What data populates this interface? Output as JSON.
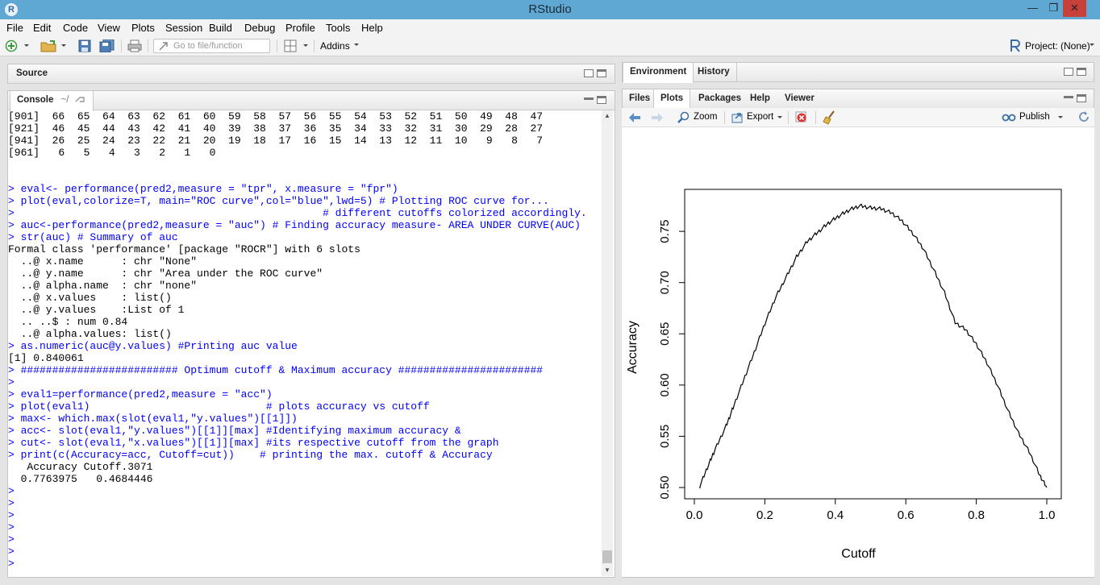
{
  "window": {
    "title": "RStudio",
    "icon": "R"
  },
  "menu": [
    "File",
    "Edit",
    "Code",
    "View",
    "Plots",
    "Session",
    "Build",
    "Debug",
    "Profile",
    "Tools",
    "Help"
  ],
  "toolbar": {
    "goto_placeholder": "Go to file/function",
    "addins": "Addins",
    "project": "Project: (None)"
  },
  "source_pane": {
    "title": "Source"
  },
  "console_pane": {
    "title": "Console",
    "path": "~/"
  },
  "console_lines": [
    {
      "t": "out",
      "s": "[901]  66  65  64  63  62  61  60  59  58  57  56  55  54  53  52  51  50  49  48  47"
    },
    {
      "t": "out",
      "s": "[921]  46  45  44  43  42  41  40  39  38  37  36  35  34  33  32  31  30  29  28  27"
    },
    {
      "t": "out",
      "s": "[941]  26  25  24  23  22  21  20  19  18  17  16  15  14  13  12  11  10   9   8   7"
    },
    {
      "t": "out",
      "s": "[961]   6   5   4   3   2   1   0"
    },
    {
      "t": "out",
      "s": ""
    },
    {
      "t": "out",
      "s": ""
    },
    {
      "t": "in",
      "s": "> eval<- performance(pred2,measure = \"tpr\", x.measure = \"fpr\")"
    },
    {
      "t": "in",
      "s": "> plot(eval,colorize=T, main=\"ROC curve\",col=\"blue\",lwd=5) # Plotting ROC curve for..."
    },
    {
      "t": "in",
      "s": ">                                                 # different cutoffs colorized accordingly."
    },
    {
      "t": "in",
      "s": "> auc<-performance(pred2,measure = \"auc\") # Finding accuracy measure- AREA UNDER CURVE(AUC)"
    },
    {
      "t": "in",
      "s": "> str(auc) # Summary of auc"
    },
    {
      "t": "out",
      "s": "Formal class 'performance' [package \"ROCR\"] with 6 slots"
    },
    {
      "t": "out",
      "s": "  ..@ x.name      : chr \"None\""
    },
    {
      "t": "out",
      "s": "  ..@ y.name      : chr \"Area under the ROC curve\""
    },
    {
      "t": "out",
      "s": "  ..@ alpha.name  : chr \"none\""
    },
    {
      "t": "out",
      "s": "  ..@ x.values    : list()"
    },
    {
      "t": "out",
      "s": "  ..@ y.values    :List of 1"
    },
    {
      "t": "out",
      "s": "  .. ..$ : num 0.84"
    },
    {
      "t": "out",
      "s": "  ..@ alpha.values: list()"
    },
    {
      "t": "in",
      "s": "> as.numeric(auc@y.values) #Printing auc value"
    },
    {
      "t": "out",
      "s": "[1] 0.840061"
    },
    {
      "t": "in",
      "s": "> ######################### Optimum cutoff & Maximum accuracy #######################"
    },
    {
      "t": "in",
      "s": ">"
    },
    {
      "t": "in",
      "s": "> eval1=performance(pred2,measure = \"acc\")"
    },
    {
      "t": "in",
      "s": "> plot(eval1)                            # plots accuracy vs cutoff"
    },
    {
      "t": "in",
      "s": "> max<- which.max(slot(eval1,\"y.values\")[[1]])"
    },
    {
      "t": "in",
      "s": "> acc<- slot(eval1,\"y.values\")[[1]][max] #Identifying maximum accuracy &"
    },
    {
      "t": "in",
      "s": "> cut<- slot(eval1,\"x.values\")[[1]][max] #its respective cutoff from the graph"
    },
    {
      "t": "in",
      "s": "> print(c(Accuracy=acc, Cutoff=cut))    # printing the max. cutoff & Accuracy"
    },
    {
      "t": "out",
      "s": "   Accuracy Cutoff.3071"
    },
    {
      "t": "out",
      "s": "  0.7763975   0.4684446"
    },
    {
      "t": "in",
      "s": ">"
    },
    {
      "t": "in",
      "s": ">"
    },
    {
      "t": "in",
      "s": ">"
    },
    {
      "t": "in",
      "s": ">"
    },
    {
      "t": "in",
      "s": ">"
    },
    {
      "t": "in",
      "s": ">"
    },
    {
      "t": "in",
      "s": ">"
    }
  ],
  "env_tabs": [
    "Environment",
    "History"
  ],
  "files_tabs": [
    "Files",
    "Plots",
    "Packages",
    "Help",
    "Viewer"
  ],
  "plot_toolbar": {
    "zoom": "Zoom",
    "export": "Export",
    "publish": "Publish"
  },
  "chart_data": {
    "type": "line",
    "title": "",
    "xlabel": "Cutoff",
    "ylabel": "Accuracy",
    "xlim": [
      0.0,
      1.0
    ],
    "ylim": [
      0.5,
      0.78
    ],
    "xticks": [
      "0.0",
      "0.2",
      "0.4",
      "0.6",
      "0.8",
      "1.0"
    ],
    "yticks": [
      "0.50",
      "0.55",
      "0.60",
      "0.65",
      "0.70",
      "0.75"
    ],
    "grid": false,
    "series": [
      {
        "x": [
          0.015,
          0.04,
          0.06,
          0.09,
          0.11,
          0.14,
          0.17,
          0.2,
          0.23,
          0.26,
          0.29,
          0.32,
          0.35,
          0.38,
          0.41,
          0.44,
          0.47,
          0.5,
          0.53,
          0.56,
          0.59,
          0.62,
          0.65,
          0.68,
          0.71,
          0.74,
          0.77,
          0.8,
          0.83,
          0.86,
          0.89,
          0.92,
          0.95,
          0.98,
          1.0
        ],
        "y": [
          0.501,
          0.522,
          0.538,
          0.56,
          0.578,
          0.605,
          0.632,
          0.66,
          0.685,
          0.705,
          0.725,
          0.74,
          0.749,
          0.758,
          0.765,
          0.771,
          0.775,
          0.773,
          0.772,
          0.768,
          0.76,
          0.748,
          0.733,
          0.712,
          0.69,
          0.661,
          0.654,
          0.64,
          0.622,
          0.6,
          0.575,
          0.553,
          0.535,
          0.512,
          0.5
        ]
      }
    ]
  }
}
